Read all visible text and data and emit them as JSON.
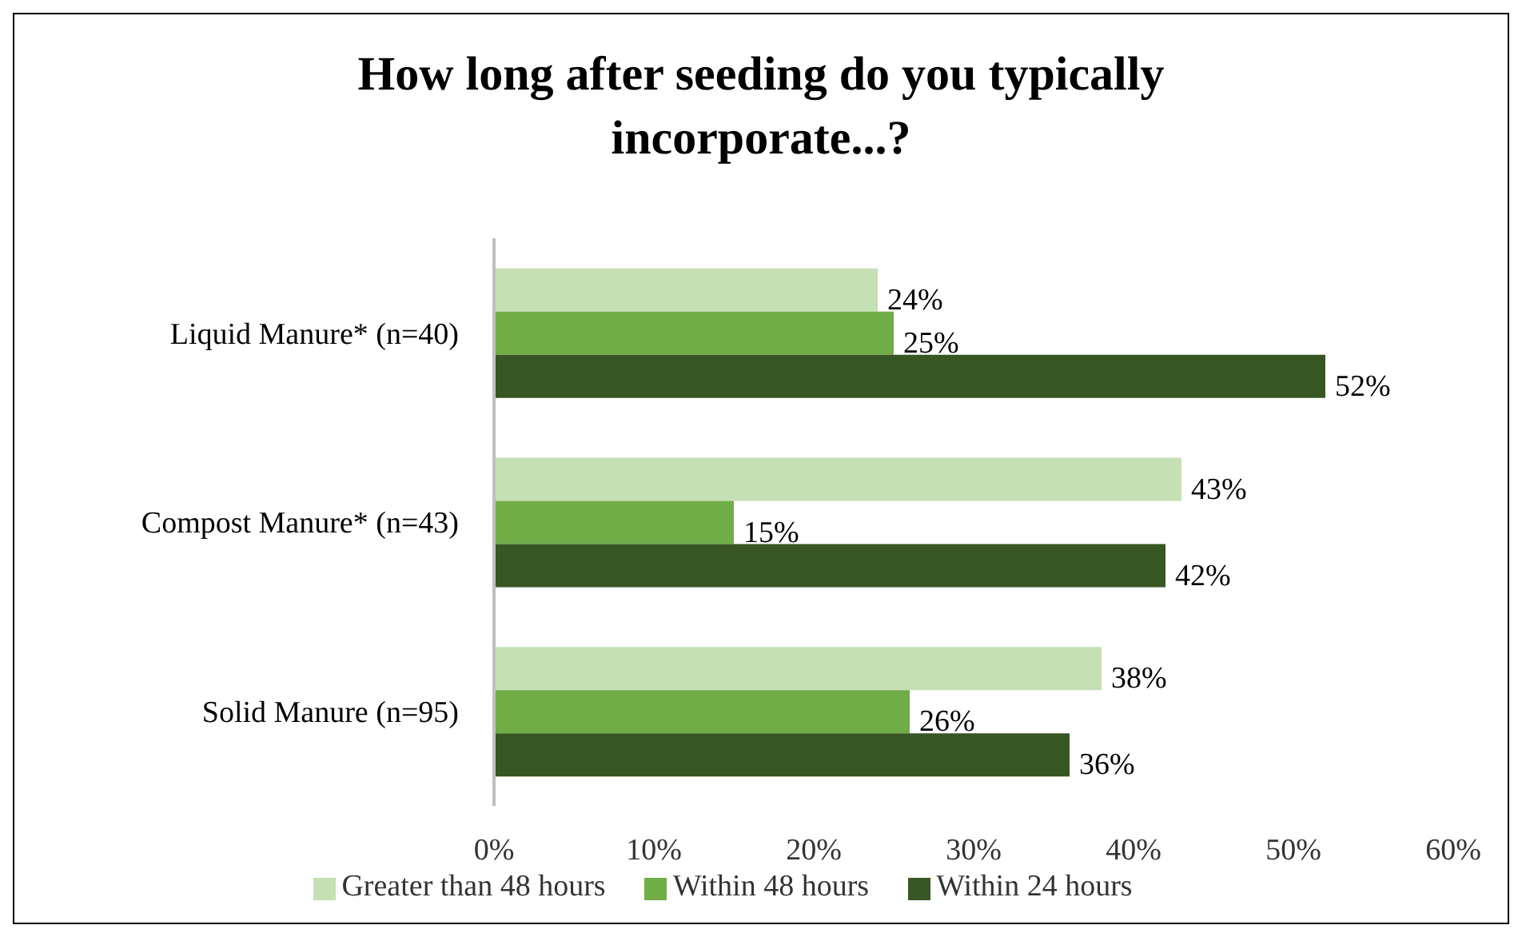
{
  "chart_data": {
    "type": "bar",
    "orientation": "horizontal",
    "title": "How long after seeding do you typically incorporate...?",
    "categories": [
      "Liquid Manure* (n=40)",
      "Compost Manure* (n=43)",
      "Solid Manure (n=95)"
    ],
    "series": [
      {
        "name": "Greater than 48 hours",
        "color": "#c5e0b4",
        "values": [
          24,
          43,
          38
        ],
        "value_labels": [
          "24%",
          "43%",
          "38%"
        ]
      },
      {
        "name": "Within 48 hours",
        "color": "#70ad47",
        "values": [
          25,
          15,
          26
        ],
        "value_labels": [
          "25%",
          "15%",
          "26%"
        ]
      },
      {
        "name": "Within 24 hours",
        "color": "#375623",
        "values": [
          52,
          42,
          36
        ],
        "value_labels": [
          "52%",
          "42%",
          "36%"
        ]
      }
    ],
    "xlim": [
      0,
      60
    ],
    "xticks": [
      {
        "value": 0,
        "label": "0%"
      },
      {
        "value": 10,
        "label": "10%"
      },
      {
        "value": 20,
        "label": "20%"
      },
      {
        "value": 30,
        "label": "30%"
      },
      {
        "value": 40,
        "label": "40%"
      },
      {
        "value": 50,
        "label": "50%"
      },
      {
        "value": 60,
        "label": "60%"
      }
    ],
    "grid": false,
    "legend": "bottom"
  }
}
